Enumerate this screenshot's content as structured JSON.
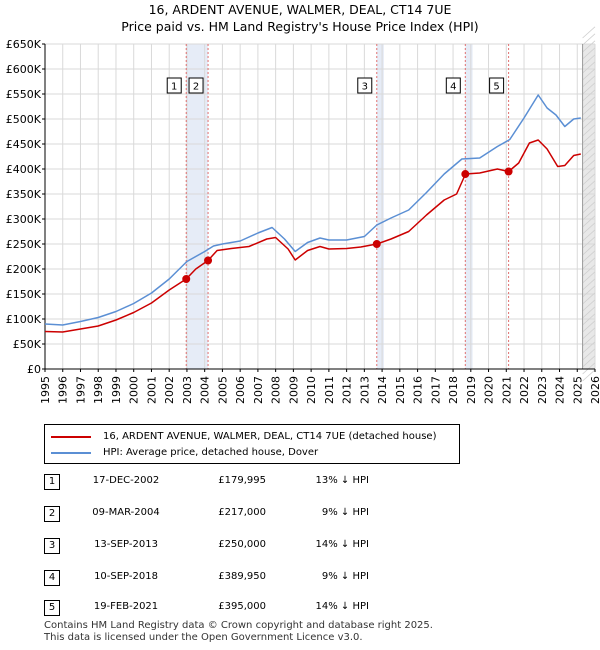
{
  "title": "16, ARDENT AVENUE, WALMER, DEAL, CT14 7UE",
  "subtitle": "Price paid vs. HM Land Registry's House Price Index (HPI)",
  "colors": {
    "property": "#cc0000",
    "hpi": "#5b8fd4",
    "band": "#e6ecf7",
    "vline": "#e07070",
    "grid": "#d9d9d9"
  },
  "chart_data": {
    "type": "line",
    "ylim": [
      0,
      650000
    ],
    "xlim": [
      1995,
      2026
    ],
    "y_ticks": [
      0,
      50000,
      100000,
      150000,
      200000,
      250000,
      300000,
      350000,
      400000,
      450000,
      500000,
      550000,
      600000,
      650000
    ],
    "y_tick_labels": [
      "£0",
      "£50K",
      "£100K",
      "£150K",
      "£200K",
      "£250K",
      "£300K",
      "£350K",
      "£400K",
      "£450K",
      "£500K",
      "£550K",
      "£600K",
      "£650K"
    ],
    "x_ticks": [
      1995,
      1996,
      1997,
      1998,
      1999,
      2000,
      2001,
      2002,
      2003,
      2004,
      2005,
      2006,
      2007,
      2008,
      2009,
      2010,
      2011,
      2012,
      2013,
      2014,
      2015,
      2016,
      2017,
      2018,
      2019,
      2020,
      2021,
      2022,
      2023,
      2024,
      2025,
      2026
    ],
    "x_tick_labels": [
      "1995",
      "1996",
      "1997",
      "1998",
      "1999",
      "2000",
      "2001",
      "2002",
      "2003",
      "2004",
      "2005",
      "2006",
      "2007",
      "2008",
      "2009",
      "2010",
      "2011",
      "2012",
      "2013",
      "2014",
      "2015",
      "2016",
      "2017",
      "2018",
      "2019",
      "2020",
      "2021",
      "2022",
      "2023",
      "2024",
      "2025",
      "2026"
    ],
    "grid": true,
    "data_end": 2025.3,
    "series": [
      {
        "name": "HPI: Average price, detached house, Dover",
        "color": "#5b8fd4",
        "points": [
          [
            1995.0,
            90000
          ],
          [
            1996.0,
            88000
          ],
          [
            1997.0,
            95000
          ],
          [
            1998.0,
            103000
          ],
          [
            1999.0,
            115000
          ],
          [
            2000.0,
            131000
          ],
          [
            2001.0,
            152000
          ],
          [
            2002.0,
            180000
          ],
          [
            2003.0,
            215000
          ],
          [
            2004.0,
            235000
          ],
          [
            2004.5,
            246000
          ],
          [
            2005.0,
            250000
          ],
          [
            2006.0,
            256000
          ],
          [
            2007.0,
            272000
          ],
          [
            2007.8,
            283000
          ],
          [
            2008.5,
            260000
          ],
          [
            2009.1,
            235000
          ],
          [
            2009.8,
            253000
          ],
          [
            2010.5,
            262000
          ],
          [
            2011.0,
            258000
          ],
          [
            2012.0,
            258000
          ],
          [
            2013.0,
            265000
          ],
          [
            2013.7,
            288000
          ],
          [
            2014.5,
            302000
          ],
          [
            2015.5,
            318000
          ],
          [
            2016.5,
            353000
          ],
          [
            2017.5,
            390000
          ],
          [
            2018.5,
            420000
          ],
          [
            2019.5,
            422000
          ],
          [
            2020.5,
            445000
          ],
          [
            2021.2,
            459000
          ],
          [
            2022.0,
            502000
          ],
          [
            2022.8,
            548000
          ],
          [
            2023.3,
            522000
          ],
          [
            2023.8,
            508000
          ],
          [
            2024.3,
            485000
          ],
          [
            2024.8,
            500000
          ],
          [
            2025.2,
            502000
          ]
        ]
      },
      {
        "name": "16, ARDENT AVENUE, WALMER, DEAL, CT14 7UE (detached house)",
        "color": "#cc0000",
        "points": [
          [
            1995.0,
            75000
          ],
          [
            1996.0,
            74000
          ],
          [
            1997.0,
            80000
          ],
          [
            1998.0,
            86000
          ],
          [
            1999.0,
            98000
          ],
          [
            2000.0,
            113000
          ],
          [
            2001.0,
            132000
          ],
          [
            2002.0,
            158000
          ],
          [
            2002.96,
            179995
          ],
          [
            2003.5,
            200000
          ],
          [
            2004.19,
            217000
          ],
          [
            2004.7,
            237000
          ],
          [
            2005.5,
            241000
          ],
          [
            2006.5,
            245000
          ],
          [
            2007.5,
            260000
          ],
          [
            2008.0,
            263000
          ],
          [
            2008.7,
            240000
          ],
          [
            2009.1,
            218000
          ],
          [
            2009.8,
            237000
          ],
          [
            2010.5,
            245000
          ],
          [
            2011.0,
            240000
          ],
          [
            2012.0,
            241000
          ],
          [
            2012.8,
            244000
          ],
          [
            2013.7,
            250000
          ],
          [
            2014.5,
            260000
          ],
          [
            2015.5,
            275000
          ],
          [
            2016.5,
            308000
          ],
          [
            2017.5,
            338000
          ],
          [
            2018.2,
            350000
          ],
          [
            2018.7,
            389950
          ],
          [
            2019.5,
            392000
          ],
          [
            2020.5,
            400000
          ],
          [
            2021.13,
            395000
          ],
          [
            2021.7,
            412000
          ],
          [
            2022.3,
            452000
          ],
          [
            2022.8,
            458000
          ],
          [
            2023.3,
            440000
          ],
          [
            2023.9,
            405000
          ],
          [
            2024.3,
            407000
          ],
          [
            2024.8,
            427000
          ],
          [
            2025.2,
            430000
          ]
        ]
      }
    ],
    "sales": [
      {
        "n": "1",
        "date": "17-DEC-2002",
        "year": 2002.96,
        "price": 179995,
        "price_label": "£179,995",
        "hpi": "13% ↓ HPI"
      },
      {
        "n": "2",
        "date": "09-MAR-2004",
        "year": 2004.19,
        "price": 217000,
        "price_label": "£217,000",
        "hpi": "9% ↓ HPI"
      },
      {
        "n": "3",
        "date": "13-SEP-2013",
        "year": 2013.7,
        "price": 250000,
        "price_label": "£250,000",
        "hpi": "14% ↓ HPI"
      },
      {
        "n": "4",
        "date": "10-SEP-2018",
        "year": 2018.69,
        "price": 389950,
        "price_label": "£389,950",
        "hpi": "9% ↓ HPI"
      },
      {
        "n": "5",
        "date": "19-FEB-2021",
        "year": 2021.13,
        "price": 395000,
        "price_label": "£395,000",
        "hpi": "14% ↓ HPI"
      }
    ],
    "shaded_periods": [
      [
        2002.96,
        2004.19
      ],
      [
        2013.7,
        2014.1
      ],
      [
        2018.69,
        2019.1
      ],
      [
        2025.3,
        2026
      ]
    ]
  },
  "legend": {
    "property_label": "16, ARDENT AVENUE, WALMER, DEAL, CT14 7UE (detached house)",
    "hpi_label": "HPI: Average price, detached house, Dover"
  },
  "footer": {
    "line1": "Contains HM Land Registry data © Crown copyright and database right 2025.",
    "line2": "This data is licensed under the Open Government Licence v3.0."
  }
}
